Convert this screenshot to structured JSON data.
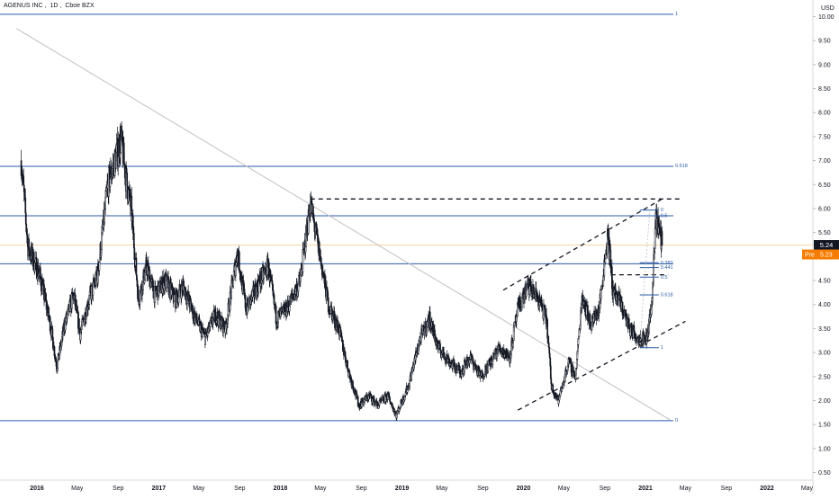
{
  "header": {
    "symbol": "AGENUS INC",
    "interval": "1D",
    "exchange": "Cboe BZX"
  },
  "colors": {
    "candle": "#131722",
    "fib_line": "#2a5aa8",
    "fib_label": "#2a5aa8",
    "trend_line": "#c0c0c0",
    "dashed": "#131722",
    "last_price_bg": "#131722",
    "pre_bg": "#f57c00",
    "last_price_line": "#f5d5a0"
  },
  "chart_data": {
    "type": "candlestick",
    "currency": "USD",
    "ylim": [
      0.4,
      10.4
    ],
    "y_ticks": [
      "0.50",
      "1.00",
      "1.50",
      "2.00",
      "2.50",
      "3.00",
      "3.50",
      "4.00",
      "4.50",
      "5.00",
      "5.50",
      "6.00",
      "6.50",
      "7.00",
      "7.50",
      "8.00",
      "8.50",
      "9.00",
      "9.50",
      "10.00"
    ],
    "x_ticks": [
      {
        "label": "2016",
        "date": "2016-01-01"
      },
      {
        "label": "May",
        "date": "2016-05-01"
      },
      {
        "label": "Sep",
        "date": "2016-09-01"
      },
      {
        "label": "2017",
        "date": "2017-01-01"
      },
      {
        "label": "May",
        "date": "2017-05-01"
      },
      {
        "label": "Sep",
        "date": "2017-09-01"
      },
      {
        "label": "2018",
        "date": "2018-01-01"
      },
      {
        "label": "May",
        "date": "2018-05-01"
      },
      {
        "label": "Sep",
        "date": "2018-09-01"
      },
      {
        "label": "2019",
        "date": "2019-01-01"
      },
      {
        "label": "May",
        "date": "2019-05-01"
      },
      {
        "label": "Sep",
        "date": "2019-09-01"
      },
      {
        "label": "2020",
        "date": "2020-01-01"
      },
      {
        "label": "May",
        "date": "2020-05-01"
      },
      {
        "label": "Sep",
        "date": "2020-09-01"
      },
      {
        "label": "2021",
        "date": "2021-01-01"
      },
      {
        "label": "May",
        "date": "2021-05-01"
      },
      {
        "label": "Sep",
        "date": "2021-09-01"
      },
      {
        "label": "2022",
        "date": "2022-01-01"
      },
      {
        "label": "May",
        "date": "2022-05-01"
      }
    ],
    "price_path": [
      [
        "2015-11-15",
        7.0
      ],
      [
        "2015-12-05",
        5.2
      ],
      [
        "2016-01-10",
        4.6
      ],
      [
        "2016-02-10",
        3.6
      ],
      [
        "2016-03-01",
        2.7
      ],
      [
        "2016-03-25",
        3.6
      ],
      [
        "2016-04-20",
        4.2
      ],
      [
        "2016-05-10",
        3.4
      ],
      [
        "2016-06-05",
        4.1
      ],
      [
        "2016-07-01",
        4.6
      ],
      [
        "2016-08-01",
        6.5
      ],
      [
        "2016-09-10",
        7.45
      ],
      [
        "2016-09-25",
        6.6
      ],
      [
        "2016-10-10",
        6.0
      ],
      [
        "2016-11-01",
        4.1
      ],
      [
        "2016-11-25",
        4.8
      ],
      [
        "2016-12-20",
        4.2
      ],
      [
        "2017-01-20",
        4.5
      ],
      [
        "2017-02-20",
        4.1
      ],
      [
        "2017-03-15",
        4.4
      ],
      [
        "2017-04-15",
        3.8
      ],
      [
        "2017-05-20",
        3.3
      ],
      [
        "2017-06-20",
        3.8
      ],
      [
        "2017-07-20",
        3.5
      ],
      [
        "2017-08-25",
        5.1
      ],
      [
        "2017-09-20",
        3.9
      ],
      [
        "2017-10-25",
        4.4
      ],
      [
        "2017-11-25",
        4.8
      ],
      [
        "2017-12-20",
        3.7
      ],
      [
        "2018-01-20",
        3.9
      ],
      [
        "2018-03-01",
        4.5
      ],
      [
        "2018-04-01",
        6.1
      ],
      [
        "2018-04-25",
        5.2
      ],
      [
        "2018-05-25",
        4.0
      ],
      [
        "2018-06-25",
        3.5
      ],
      [
        "2018-07-25",
        2.6
      ],
      [
        "2018-08-25",
        1.9
      ],
      [
        "2018-09-25",
        2.1
      ],
      [
        "2018-10-20",
        1.9
      ],
      [
        "2018-11-20",
        2.1
      ],
      [
        "2018-12-15",
        1.7
      ],
      [
        "2019-01-20",
        2.3
      ],
      [
        "2019-02-25",
        3.3
      ],
      [
        "2019-03-25",
        3.7
      ],
      [
        "2019-04-20",
        3.1
      ],
      [
        "2019-05-25",
        2.8
      ],
      [
        "2019-06-25",
        2.6
      ],
      [
        "2019-07-25",
        2.9
      ],
      [
        "2019-08-25",
        2.5
      ],
      [
        "2019-09-25",
        2.8
      ],
      [
        "2019-10-20",
        3.1
      ],
      [
        "2019-11-20",
        2.9
      ],
      [
        "2019-12-15",
        3.9
      ],
      [
        "2020-01-15",
        4.4
      ],
      [
        "2020-02-15",
        4.1
      ],
      [
        "2020-03-10",
        3.7
      ],
      [
        "2020-03-25",
        2.3
      ],
      [
        "2020-04-15",
        2.0
      ],
      [
        "2020-05-15",
        2.8
      ],
      [
        "2020-06-05",
        2.5
      ],
      [
        "2020-06-25",
        4.2
      ],
      [
        "2020-07-20",
        3.6
      ],
      [
        "2020-08-15",
        3.9
      ],
      [
        "2020-09-10",
        5.5
      ],
      [
        "2020-09-25",
        4.3
      ],
      [
        "2020-10-20",
        4.0
      ],
      [
        "2020-11-15",
        3.5
      ],
      [
        "2020-12-10",
        3.3
      ],
      [
        "2021-01-05",
        3.3
      ],
      [
        "2021-01-20",
        4.0
      ],
      [
        "2021-02-01",
        5.9
      ],
      [
        "2021-02-10",
        5.6
      ],
      [
        "2021-02-20",
        5.24
      ]
    ],
    "last_price": "5.24",
    "pre_label": "Pre",
    "pre_price": "5.23",
    "horizontal_levels": [
      {
        "price": 10.05,
        "label": "1"
      },
      {
        "price": 6.88,
        "label": "0.618"
      },
      {
        "price": 5.85,
        "label": ""
      },
      {
        "price": 4.85,
        "label": ""
      },
      {
        "price": 1.58,
        "label": "0"
      }
    ],
    "fib_right": {
      "x_date_start": "2020-12-15",
      "x_date_end": "2021-02-10",
      "levels": [
        {
          "price": 5.97,
          "label": "0"
        },
        {
          "price": 5.85,
          "label": "0.5"
        },
        {
          "price": 4.87,
          "label": "0.382"
        },
        {
          "price": 4.77,
          "label": "0.441"
        },
        {
          "price": 4.57,
          "label": "0.5"
        },
        {
          "price": 4.2,
          "label": "0.618"
        },
        {
          "price": 3.1,
          "label": "1"
        }
      ]
    },
    "trend_line": {
      "from": [
        "2015-11-01",
        9.75
      ],
      "to": [
        "2021-03-15",
        1.6
      ]
    },
    "dashed_horizontals": [
      {
        "from": "2018-04-01",
        "to": "2021-04-15",
        "price": 6.2
      },
      {
        "from": "2020-09-20",
        "to": "2021-03-10",
        "price": 4.62
      }
    ],
    "dashed_channel": [
      {
        "from": [
          "2019-11-01",
          4.3
        ],
        "to": [
          "2021-02-20",
          6.2
        ]
      },
      {
        "from": [
          "2019-12-15",
          1.8
        ],
        "to": [
          "2021-05-01",
          3.65
        ]
      }
    ]
  }
}
